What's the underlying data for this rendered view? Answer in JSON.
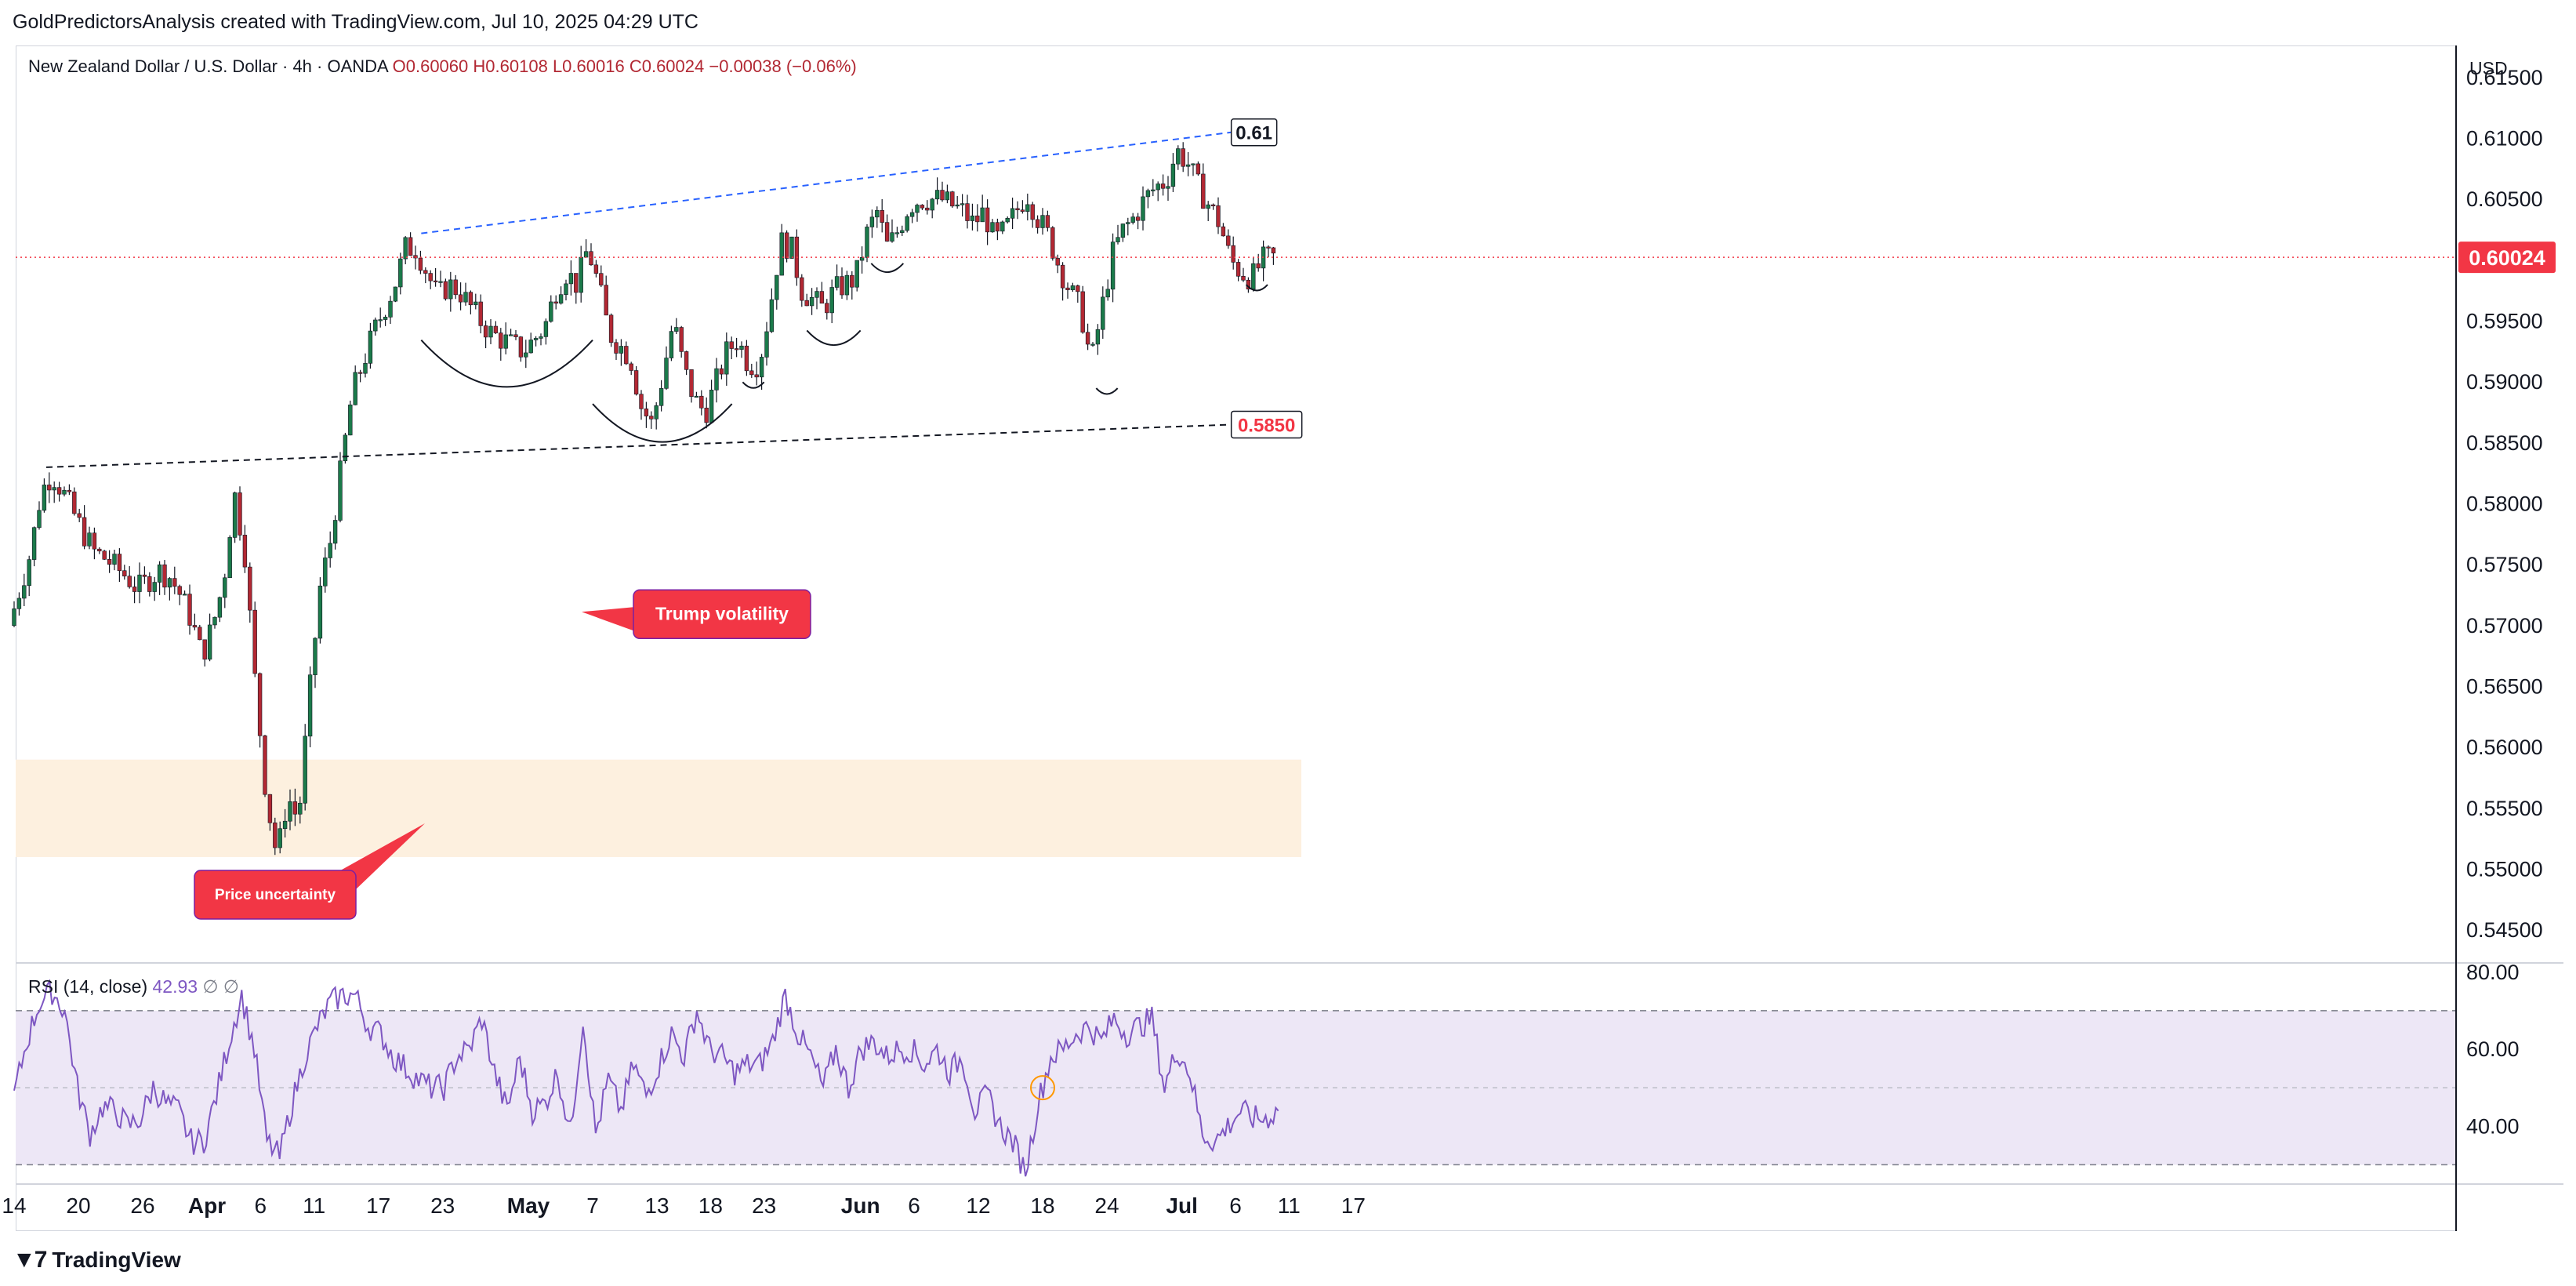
{
  "header": {
    "caption": "GoldPredictorsAnalysis created with TradingView.com, Jul 10, 2025 04:29 UTC",
    "symbol": "New Zealand Dollar / U.S. Dollar · 4h · OANDA",
    "open": "O0.60060",
    "high": "H0.60108",
    "low": "L0.60016",
    "close": "C0.60024",
    "change": "−0.00038 (−0.06%)",
    "currency": "USD"
  },
  "footer": {
    "brand": "TradingView",
    "logo": "tradingview-logo-icon"
  },
  "colors": {
    "up": "#22ab94",
    "upBody": "#1b7a4a",
    "down": "#b22833",
    "trend_blue": "#2962ff",
    "support_dash": "#131722",
    "zone": "#fdf0df",
    "rsi_line": "#7e57c2",
    "rsi_band": "#ede7f6",
    "last_price": "#f23645",
    "callout": "#f23645"
  },
  "chart_data": [
    {
      "type": "candlestick",
      "pair": "NZD/USD",
      "timeframe": "4h",
      "ylim": [
        0.5425,
        0.6175
      ],
      "y_ticks": [
        "0.61500",
        "0.61000",
        "0.60500",
        "0.60000",
        "0.59500",
        "0.59000",
        "0.58500",
        "0.58000",
        "0.57500",
        "0.57000",
        "0.56500",
        "0.56000",
        "0.55500",
        "0.55000",
        "0.54500"
      ],
      "x_ticks": [
        "14",
        "20",
        "26",
        "Apr",
        "6",
        "11",
        "17",
        "23",
        "May",
        "7",
        "13",
        "18",
        "23",
        "Jun",
        "6",
        "12",
        "18",
        "24",
        "Jul",
        "6",
        "11",
        "17"
      ],
      "close_path": [
        [
          "Mar 14",
          0.57
        ],
        [
          "Mar 16",
          0.576
        ],
        [
          "Mar 17",
          0.581
        ],
        [
          "Mar 18",
          0.5825
        ],
        [
          "Mar 19",
          0.581
        ],
        [
          "Mar 21",
          0.5775
        ],
        [
          "Mar 22",
          0.576
        ],
        [
          "Mar 23",
          0.5755
        ],
        [
          "Mar 25",
          0.574
        ],
        [
          "Mar 26",
          0.573
        ],
        [
          "Mar 28",
          0.5745
        ],
        [
          "Mar 29",
          0.574
        ],
        [
          "Mar 30",
          0.5725
        ],
        [
          "Mar 31",
          0.5705
        ],
        [
          "Apr 1",
          0.5675
        ],
        [
          "Apr 2",
          0.57
        ],
        [
          "Apr 3",
          0.5735
        ],
        [
          "Apr 4",
          0.581
        ],
        [
          "Apr 5",
          0.576
        ],
        [
          "Apr 6",
          0.565
        ],
        [
          "Apr 7",
          0.556
        ],
        [
          "Apr 8",
          0.551
        ],
        [
          "Apr 9",
          0.556
        ],
        [
          "Apr 10",
          0.554
        ],
        [
          "Apr 11",
          0.564
        ],
        [
          "Apr 12",
          0.573
        ],
        [
          "Apr 13",
          0.577
        ],
        [
          "Apr 14",
          0.583
        ],
        [
          "Apr 15",
          0.589
        ],
        [
          "Apr 17",
          0.594
        ],
        [
          "Apr 18",
          0.596
        ],
        [
          "Apr 19",
          0.598
        ],
        [
          "Apr 20",
          0.601
        ],
        [
          "Apr 21",
          0.601
        ],
        [
          "Apr 23",
          0.597
        ],
        [
          "Apr 24",
          0.598
        ],
        [
          "Apr 25",
          0.5975
        ],
        [
          "Apr 27",
          0.595
        ],
        [
          "Apr 28",
          0.594
        ],
        [
          "Apr 30",
          0.593
        ],
        [
          "May 1",
          0.5925
        ],
        [
          "May 3",
          0.5945
        ],
        [
          "May 4",
          0.5975
        ],
        [
          "May 5",
          0.599
        ],
        [
          "May 6",
          0.598
        ],
        [
          "May 7",
          0.601
        ],
        [
          "May 8",
          0.598
        ],
        [
          "May 9",
          0.594
        ],
        [
          "May 11",
          0.592
        ],
        [
          "May 12",
          0.588
        ],
        [
          "May 13",
          0.5865
        ],
        [
          "May 14",
          0.5905
        ],
        [
          "May 15",
          0.595
        ],
        [
          "May 16",
          0.591
        ],
        [
          "May 17",
          0.5885
        ],
        [
          "May 18",
          0.5875
        ],
        [
          "May 19",
          0.59
        ],
        [
          "May 20",
          0.5925
        ],
        [
          "May 21",
          0.5935
        ],
        [
          "May 22",
          0.5915
        ],
        [
          "May 23",
          0.5915
        ],
        [
          "May 24",
          0.596
        ],
        [
          "May 25",
          0.6015
        ],
        [
          "May 26",
          0.601
        ],
        [
          "May 27",
          0.5975
        ],
        [
          "May 29",
          0.596
        ],
        [
          "May 30",
          0.5975
        ],
        [
          "Jun 1",
          0.5985
        ],
        [
          "Jun 2",
          0.602
        ],
        [
          "Jun 3",
          0.604
        ],
        [
          "Jun 4",
          0.601
        ],
        [
          "Jun 5",
          0.6025
        ],
        [
          "Jun 6",
          0.6045
        ],
        [
          "Jun 7",
          0.605
        ],
        [
          "Jun 9",
          0.605
        ],
        [
          "Jun 10",
          0.6045
        ],
        [
          "Jun 11",
          0.604
        ],
        [
          "Jun 12",
          0.603
        ],
        [
          "Jun 13",
          0.604
        ],
        [
          "Jun 14",
          0.6015
        ],
        [
          "Jun 15",
          0.6025
        ],
        [
          "Jun 16",
          0.604
        ],
        [
          "Jun 17",
          0.6055
        ],
        [
          "Jun 18",
          0.6035
        ],
        [
          "Jun 19",
          0.602
        ],
        [
          "Jun 20",
          0.5995
        ],
        [
          "Jun 21",
          0.5975
        ],
        [
          "Jun 22",
          0.596
        ],
        [
          "Jun 23",
          0.5915
        ],
        [
          "Jun 24",
          0.596
        ],
        [
          "Jun 25",
          0.6005
        ],
        [
          "Jun 26",
          0.6025
        ],
        [
          "Jun 27",
          0.6035
        ],
        [
          "Jun 28",
          0.605
        ],
        [
          "Jun 29",
          0.606
        ],
        [
          "Jun 30",
          0.6065
        ],
        [
          "Jul 1",
          0.609
        ],
        [
          "Jul 2",
          0.608
        ],
        [
          "Jul 3",
          0.606
        ],
        [
          "Jul 4",
          0.6045
        ],
        [
          "Jul 5",
          0.603
        ],
        [
          "Jul 6",
          0.6
        ],
        [
          "Jul 7",
          0.599
        ],
        [
          "Jul 8",
          0.5985
        ],
        [
          "Jul 9",
          0.6
        ],
        [
          "Jul 10",
          0.6002
        ]
      ],
      "last_price_label": "0.60024",
      "trendline_upper": {
        "from": [
          "Apr 21",
          0.6022
        ],
        "to": [
          "Jul 10",
          0.6105
        ],
        "label": "0.61"
      },
      "trendline_lower": {
        "from": [
          "Mar 17",
          0.583
        ],
        "to": [
          "Jul 10",
          0.5865
        ],
        "label": "0.5850"
      },
      "demand_zone": {
        "from": "Mar 14",
        "to": "Jul 12",
        "y": [
          0.551,
          0.559
        ]
      },
      "rounding_bottoms": [
        {
          "from": "Apr 21",
          "to": "May 7",
          "low": 0.5895
        },
        {
          "from": "May 7",
          "to": "May 20",
          "low": 0.585
        },
        {
          "from": "May 21",
          "to": "May 23",
          "low": 0.5895
        },
        {
          "from": "May 27",
          "to": "Jun 1",
          "low": 0.593
        },
        {
          "from": "Jun 2",
          "to": "Jun 5",
          "low": 0.599
        },
        {
          "from": "Jun 23",
          "to": "Jun 25",
          "low": 0.589
        },
        {
          "from": "Jul 7",
          "to": "Jul 9",
          "low": 0.5975
        }
      ],
      "annotations": [
        {
          "text": "Trump volatility",
          "at": [
            "Apr 14",
            0.571
          ]
        },
        {
          "text": "Price uncertainty",
          "at": [
            "Apr 8",
            0.5515
          ]
        }
      ]
    },
    {
      "type": "line",
      "title": "RSI (14, close)",
      "current": "42.93",
      "extra": "∅ ∅",
      "ylim": [
        26,
        82
      ],
      "y_ticks": [
        "80.00",
        "60.00",
        "40.00"
      ],
      "bands": [
        30,
        70
      ],
      "mid": 50,
      "values": [
        48,
        62,
        72,
        75,
        70,
        50,
        38,
        45,
        44,
        40,
        42,
        50,
        46,
        44,
        36,
        36,
        48,
        62,
        74,
        60,
        36,
        32,
        46,
        58,
        66,
        72,
        74,
        74,
        66,
        64,
        58,
        55,
        52,
        50,
        50,
        58,
        60,
        68,
        54,
        44,
        58,
        44,
        46,
        54,
        38,
        68,
        38,
        52,
        44,
        56,
        48,
        56,
        64,
        58,
        70,
        60,
        58,
        54,
        56,
        56,
        62,
        74,
        64,
        58,
        50,
        60,
        50,
        60,
        62,
        58,
        60,
        60,
        56,
        60,
        54,
        58,
        44,
        48,
        40,
        36,
        28,
        46,
        58,
        60,
        64,
        66,
        62,
        68,
        64,
        66,
        68,
        50,
        60,
        54,
        38,
        36,
        40,
        44,
        42,
        42,
        44
      ],
      "highlight_marker": {
        "date": "Jun 18",
        "value": 50
      }
    }
  ]
}
